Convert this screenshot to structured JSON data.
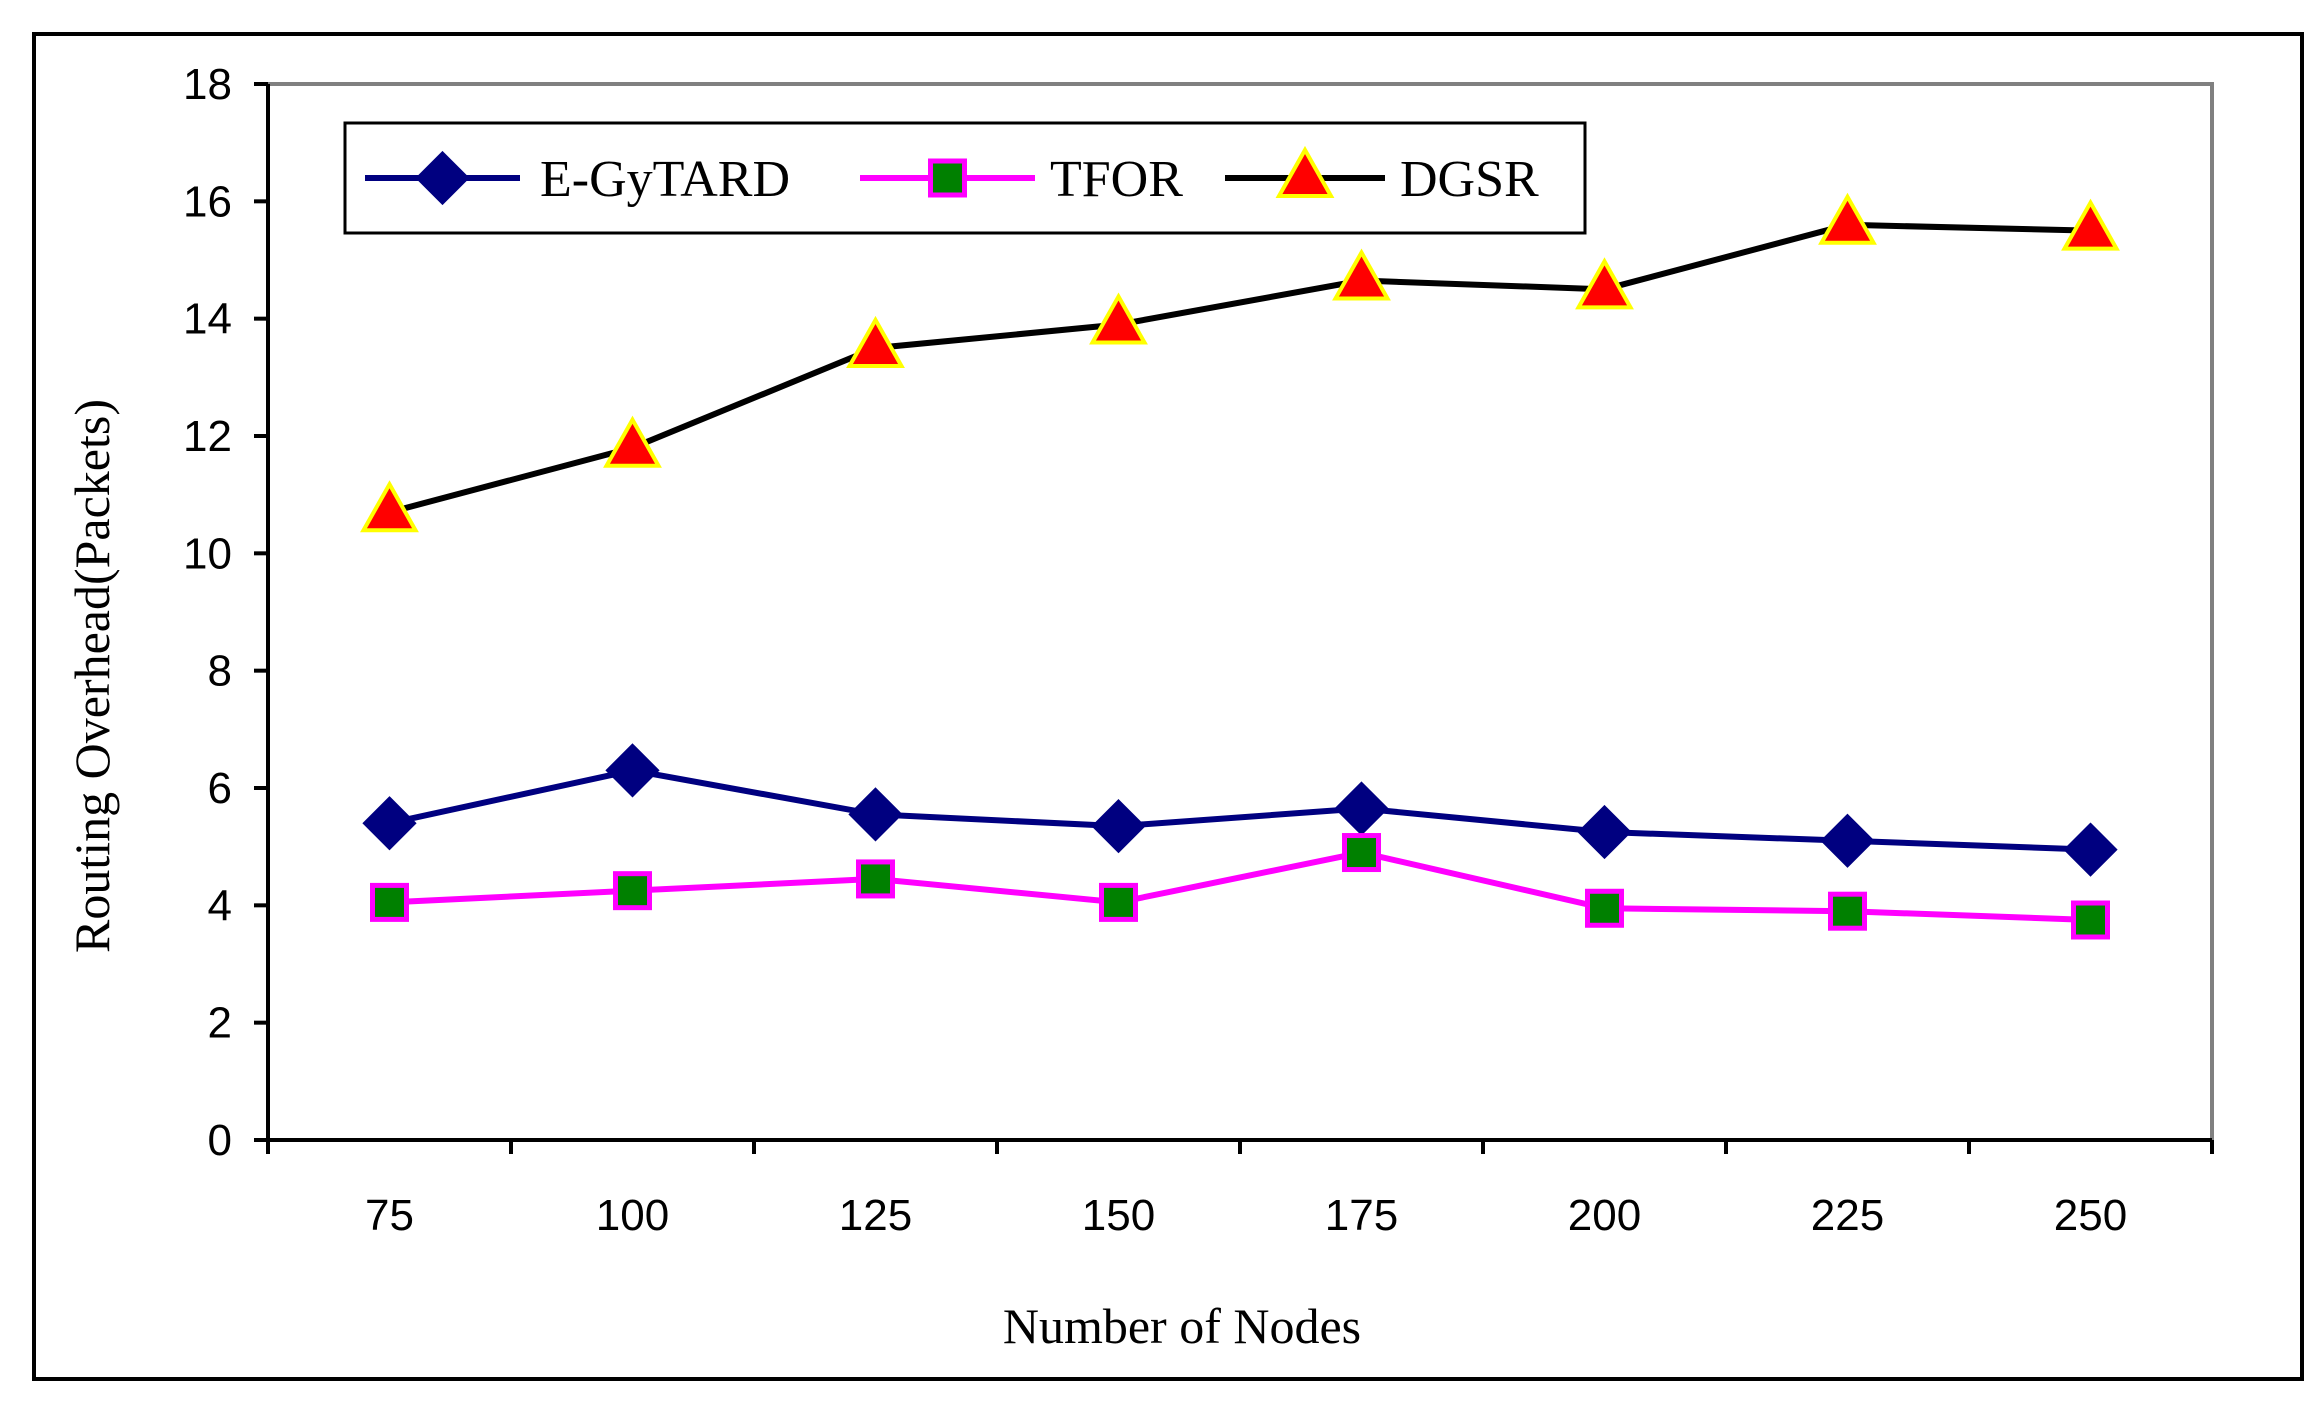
{
  "chart_data": {
    "type": "line",
    "title": "",
    "xlabel": "Number of Nodes",
    "ylabel": "Routing Overhead(Packets)",
    "categories": [
      "75",
      "100",
      "125",
      "150",
      "175",
      "200",
      "225",
      "250"
    ],
    "ylim": [
      0,
      18
    ],
    "yticks": [
      0,
      2,
      4,
      6,
      8,
      10,
      12,
      14,
      16,
      18
    ],
    "grid": false,
    "legend_position": "top-left",
    "series": [
      {
        "name": "E-GyTARD",
        "marker": "diamond",
        "line_color": "#000080",
        "marker_fill": "#000080",
        "marker_stroke": "#000080",
        "values": [
          5.4,
          6.3,
          5.55,
          5.35,
          5.65,
          5.25,
          5.1,
          4.95
        ]
      },
      {
        "name": "TFOR",
        "marker": "square",
        "line_color": "#FF00FF",
        "marker_fill": "#008000",
        "marker_stroke": "#FF00FF",
        "values": [
          4.05,
          4.25,
          4.45,
          4.05,
          4.9,
          3.95,
          3.9,
          3.75
        ]
      },
      {
        "name": "DGSR",
        "marker": "triangle",
        "line_color": "#000000",
        "marker_fill": "#FF0000",
        "marker_stroke": "#FFFF00",
        "values": [
          10.7,
          11.8,
          13.5,
          13.9,
          14.65,
          14.5,
          15.6,
          15.5
        ]
      }
    ]
  }
}
